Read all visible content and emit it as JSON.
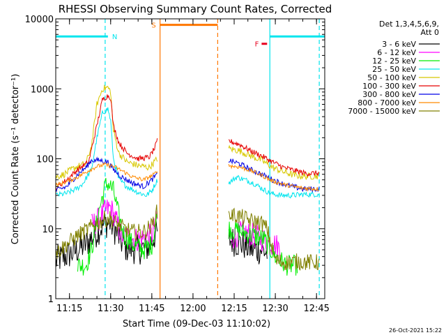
{
  "chart_data": {
    "type": "line",
    "title": "RHESSI Observing Summary Count Rates, Corrected",
    "xlabel": "Start Time (09-Dec-03 11:10:02)",
    "ylabel": "Corrected Count Rate (s⁻¹ detector⁻¹)",
    "y_scale": "log",
    "ylim": [
      1,
      10000
    ],
    "xlim": [
      "11:10",
      "12:48"
    ],
    "x_ticks": [
      "11:15",
      "11:30",
      "11:45",
      "12:00",
      "12:15",
      "12:30",
      "12:45"
    ],
    "y_ticks": [
      "1",
      "10",
      "100",
      "1000",
      "10000"
    ],
    "legend_header": [
      "Det 1,3,4,5,6,9,",
      "Att 0"
    ],
    "legend_position": "top-right",
    "timestamp": "26-Oct-2021 15:22",
    "flags": [
      {
        "label": "N",
        "color": "#00e5ee",
        "segments": [
          [
            "11:10",
            "11:29"
          ],
          [
            "12:28",
            "12:48"
          ]
        ],
        "y": 5600
      },
      {
        "label": "S",
        "color": "#ff7700",
        "segments": [
          [
            "11:48",
            "12:09"
          ]
        ],
        "y": 8200
      },
      {
        "label": "F",
        "color": "#e8001e",
        "segments": [
          [
            "12:25",
            "12:27"
          ]
        ],
        "y": 4400
      }
    ],
    "events": [
      {
        "time": "11:28",
        "color": "#00e5ee",
        "style": "dashed"
      },
      {
        "time": "11:48",
        "color": "#ff7700",
        "style": "solid"
      },
      {
        "time": "12:09",
        "color": "#ff7700",
        "style": "dashed"
      },
      {
        "time": "12:28",
        "color": "#00e5ee",
        "style": "solid"
      },
      {
        "time": "12:46",
        "color": "#00e5ee",
        "style": "dashed"
      }
    ],
    "series": [
      {
        "name": "3 - 6 keV",
        "color": "#000000",
        "noise": 0.22,
        "segments": [
          {
            "x": [
              "11:10",
              "11:16",
              "11:21",
              "11:26",
              "11:28",
              "11:30",
              "11:32",
              "11:35",
              "11:40",
              "11:44",
              "11:46",
              "11:47"
            ],
            "y": [
              3.5,
              4.5,
              6,
              10,
              12,
              12,
              9,
              5.5,
              5,
              5.5,
              8,
              9
            ]
          },
          {
            "x": [
              "12:13",
              "12:18",
              "12:22",
              "12:25",
              "12:27"
            ],
            "y": [
              7,
              6,
              5,
              5,
              4.5
            ]
          }
        ]
      },
      {
        "name": "6 - 12 keV",
        "color": "#ff00ff",
        "noise": 0.18,
        "segments": [
          {
            "x": [
              "11:23",
              "11:26",
              "11:28",
              "11:30",
              "11:32",
              "11:34",
              "11:40",
              "11:45",
              "11:47"
            ],
            "y": [
              11,
              14,
              18,
              20,
              13,
              8,
              7,
              8,
              14
            ]
          },
          {
            "x": [
              "12:13",
              "12:18",
              "12:22",
              "12:26",
              "12:28",
              "12:30",
              "12:32"
            ],
            "y": [
              7,
              9,
              8,
              7,
              6,
              6,
              5
            ]
          }
        ]
      },
      {
        "name": "12 - 25 keV",
        "color": "#00ee00",
        "noise": 0.15,
        "segments": [
          {
            "x": [
              "11:18",
              "11:21",
              "11:23",
              "11:26",
              "11:28",
              "11:29",
              "11:31",
              "11:33",
              "11:35",
              "11:38",
              "11:42",
              "11:45",
              "11:47"
            ],
            "y": [
              3,
              3,
              5,
              20,
              40,
              45,
              35,
              15,
              8,
              6,
              5,
              6,
              15
            ]
          },
          {
            "x": [
              "12:13",
              "12:18",
              "12:22",
              "12:26",
              "12:30",
              "12:34",
              "12:38"
            ],
            "y": [
              10,
              9,
              8,
              7,
              4,
              3,
              3
            ]
          }
        ]
      },
      {
        "name": "25 - 50 keV",
        "color": "#00e5ee",
        "noise": 0.04,
        "segments": [
          {
            "x": [
              "11:10",
              "11:14",
              "11:18",
              "11:20",
              "11:23",
              "11:25",
              "11:27",
              "11:29",
              "11:30",
              "11:31",
              "11:33",
              "11:36",
              "11:40",
              "11:43",
              "11:45",
              "11:47"
            ],
            "y": [
              30,
              32,
              38,
              45,
              70,
              200,
              450,
              520,
              350,
              100,
              50,
              40,
              33,
              30,
              35,
              50
            ]
          },
          {
            "x": [
              "12:13",
              "12:16",
              "12:19",
              "12:22",
              "12:25",
              "12:28",
              "12:32",
              "12:36",
              "12:40",
              "12:46"
            ],
            "y": [
              45,
              55,
              50,
              45,
              38,
              32,
              30,
              30,
              31,
              31
            ]
          }
        ]
      },
      {
        "name": "50 - 100 keV",
        "color": "#d8c800",
        "noise": 0.05,
        "segments": [
          {
            "x": [
              "11:10",
              "11:13",
              "11:17",
              "11:21",
              "11:23",
              "11:25",
              "11:27",
              "11:29",
              "11:30",
              "11:31",
              "11:33",
              "11:36",
              "11:40",
              "11:44",
              "11:47"
            ],
            "y": [
              55,
              60,
              75,
              85,
              150,
              600,
              1000,
              1050,
              900,
              250,
              120,
              90,
              80,
              75,
              100
            ]
          },
          {
            "x": [
              "12:13",
              "12:17",
              "12:21",
              "12:25",
              "12:29",
              "12:33",
              "12:37",
              "12:41",
              "12:46"
            ],
            "y": [
              140,
              130,
              110,
              95,
              75,
              65,
              58,
              56,
              57
            ]
          }
        ]
      },
      {
        "name": "100 - 300 keV",
        "color": "#e60000",
        "noise": 0.04,
        "segments": [
          {
            "x": [
              "11:10",
              "11:14",
              "11:18",
              "11:22",
              "11:25",
              "11:27",
              "11:29",
              "11:30",
              "11:31",
              "11:33",
              "11:36",
              "11:40",
              "11:44",
              "11:46",
              "11:47"
            ],
            "y": [
              38,
              50,
              70,
              90,
              300,
              700,
              800,
              750,
              300,
              170,
              120,
              100,
              105,
              140,
              180
            ]
          },
          {
            "x": [
              "12:13",
              "12:17",
              "12:21",
              "12:25",
              "12:29",
              "12:33",
              "12:37",
              "12:41",
              "12:46"
            ],
            "y": [
              180,
              160,
              130,
              110,
              90,
              75,
              68,
              62,
              62
            ]
          }
        ]
      },
      {
        "name": "300 - 800 keV",
        "color": "#0000e6",
        "noise": 0.04,
        "segments": [
          {
            "x": [
              "11:10",
              "11:14",
              "11:18",
              "11:21",
              "11:23",
              "11:26",
              "11:29",
              "11:31",
              "11:34",
              "11:38",
              "11:42",
              "11:45",
              "11:47"
            ],
            "y": [
              35,
              40,
              60,
              75,
              95,
              95,
              90,
              70,
              55,
              45,
              40,
              50,
              60
            ]
          },
          {
            "x": [
              "12:13",
              "12:17",
              "12:21",
              "12:25",
              "12:29",
              "12:34",
              "12:40",
              "12:46"
            ],
            "y": [
              95,
              85,
              70,
              60,
              50,
              42,
              37,
              37
            ]
          }
        ]
      },
      {
        "name": "800 - 7000 keV",
        "color": "#ff8a00",
        "noise": 0.03,
        "segments": [
          {
            "x": [
              "11:10",
              "11:14",
              "11:18",
              "11:22",
              "11:25",
              "11:28",
              "11:31",
              "11:34",
              "11:38",
              "11:42",
              "11:46",
              "11:47"
            ],
            "y": [
              42,
              47,
              55,
              68,
              78,
              82,
              78,
              68,
              55,
              50,
              60,
              70
            ]
          },
          {
            "x": [
              "12:13",
              "12:17",
              "12:21",
              "12:25",
              "12:29",
              "12:34",
              "12:40",
              "12:46"
            ],
            "y": [
              80,
              76,
              68,
              58,
              48,
              42,
              38,
              37
            ]
          }
        ]
      },
      {
        "name": "7000 - 15000 keV",
        "color": "#808000",
        "noise": 0.12,
        "segments": [
          {
            "x": [
              "11:10",
              "11:14",
              "11:18",
              "11:22",
              "11:25",
              "11:28",
              "11:30",
              "11:32",
              "11:35",
              "11:38",
              "11:42",
              "11:45",
              "11:47"
            ],
            "y": [
              4.5,
              6,
              8,
              10,
              12,
              14,
              14,
              12,
              10,
              9,
              9,
              11,
              18
            ]
          },
          {
            "x": [
              "12:13",
              "12:17",
              "12:21",
              "12:25",
              "12:27",
              "12:30",
              "12:34",
              "12:38",
              "12:42",
              "12:46"
            ],
            "y": [
              16,
              15,
              13,
              12,
              10,
              3.5,
              3.3,
              3.4,
              3.3,
              3.3
            ]
          }
        ]
      }
    ]
  }
}
